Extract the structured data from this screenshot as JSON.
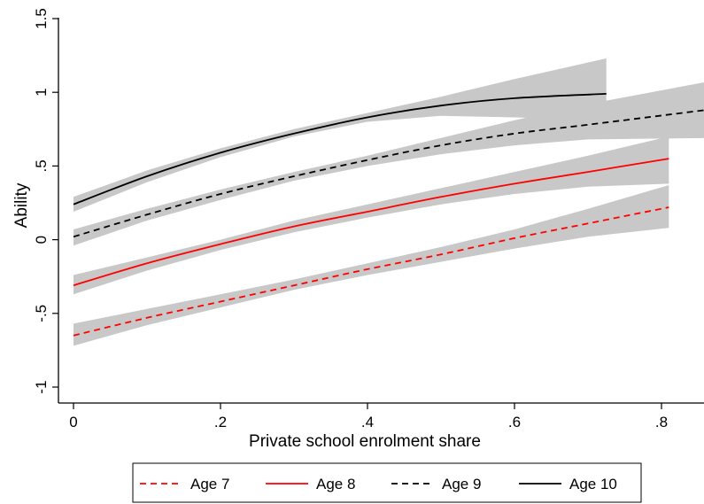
{
  "chart_data": {
    "type": "line",
    "title": "",
    "xlabel": "Private school enrolment share",
    "ylabel": "Ability",
    "xlim": [
      0,
      0.86
    ],
    "ylim": [
      -1,
      1.5
    ],
    "x_ticks": [
      {
        "value": 0,
        "label": "0"
      },
      {
        "value": 0.2,
        "label": ".2"
      },
      {
        "value": 0.4,
        "label": ".4"
      },
      {
        "value": 0.6,
        "label": ".6"
      },
      {
        "value": 0.8,
        "label": ".8"
      }
    ],
    "y_ticks": [
      {
        "value": -1,
        "label": "-1"
      },
      {
        "value": -0.5,
        "label": "-.5"
      },
      {
        "value": 0,
        "label": "0"
      },
      {
        "value": 0.5,
        "label": ".5"
      },
      {
        "value": 1,
        "label": "1"
      },
      {
        "value": 1.5,
        "label": "1.5"
      }
    ],
    "grid": false,
    "legend_position": "bottom",
    "band_color": "#c8c8c8",
    "series": [
      {
        "name": "Age 7",
        "color": "#ff0000",
        "dashed": true,
        "x": [
          0,
          0.1,
          0.2,
          0.3,
          0.4,
          0.5,
          0.6,
          0.7,
          0.81
        ],
        "y": [
          -0.65,
          -0.53,
          -0.42,
          -0.31,
          -0.2,
          -0.1,
          0.01,
          0.11,
          0.22
        ],
        "lower": [
          -0.72,
          -0.58,
          -0.46,
          -0.34,
          -0.24,
          -0.15,
          -0.06,
          0.02,
          0.08
        ],
        "upper": [
          -0.57,
          -0.47,
          -0.37,
          -0.27,
          -0.16,
          -0.05,
          0.07,
          0.21,
          0.37
        ]
      },
      {
        "name": "Age 8",
        "color": "#ff0000",
        "dashed": false,
        "x": [
          0,
          0.1,
          0.2,
          0.3,
          0.4,
          0.5,
          0.6,
          0.7,
          0.81
        ],
        "y": [
          -0.31,
          -0.16,
          -0.03,
          0.09,
          0.19,
          0.29,
          0.38,
          0.46,
          0.55
        ],
        "lower": [
          -0.37,
          -0.21,
          -0.07,
          0.05,
          0.15,
          0.24,
          0.31,
          0.36,
          0.38
        ],
        "upper": [
          -0.24,
          -0.12,
          0.0,
          0.13,
          0.24,
          0.35,
          0.46,
          0.57,
          0.7
        ]
      },
      {
        "name": "Age 9",
        "color": "#000000",
        "dashed": true,
        "x": [
          0,
          0.1,
          0.2,
          0.3,
          0.4,
          0.5,
          0.6,
          0.7,
          0.86
        ],
        "y": [
          0.02,
          0.17,
          0.31,
          0.43,
          0.54,
          0.64,
          0.72,
          0.78,
          0.88
        ],
        "lower": [
          -0.04,
          0.13,
          0.27,
          0.4,
          0.5,
          0.58,
          0.64,
          0.68,
          0.69
        ],
        "upper": [
          0.07,
          0.21,
          0.34,
          0.46,
          0.57,
          0.69,
          0.81,
          0.92,
          1.07
        ]
      },
      {
        "name": "Age 10",
        "color": "#000000",
        "dashed": false,
        "x": [
          0,
          0.1,
          0.2,
          0.3,
          0.4,
          0.5,
          0.6,
          0.725
        ],
        "y": [
          0.24,
          0.43,
          0.59,
          0.72,
          0.83,
          0.91,
          0.96,
          0.99
        ],
        "lower": [
          0.19,
          0.39,
          0.56,
          0.7,
          0.8,
          0.84,
          0.83,
          0.81
        ],
        "upper": [
          0.29,
          0.47,
          0.62,
          0.75,
          0.86,
          0.97,
          1.09,
          1.23
        ]
      }
    ]
  }
}
